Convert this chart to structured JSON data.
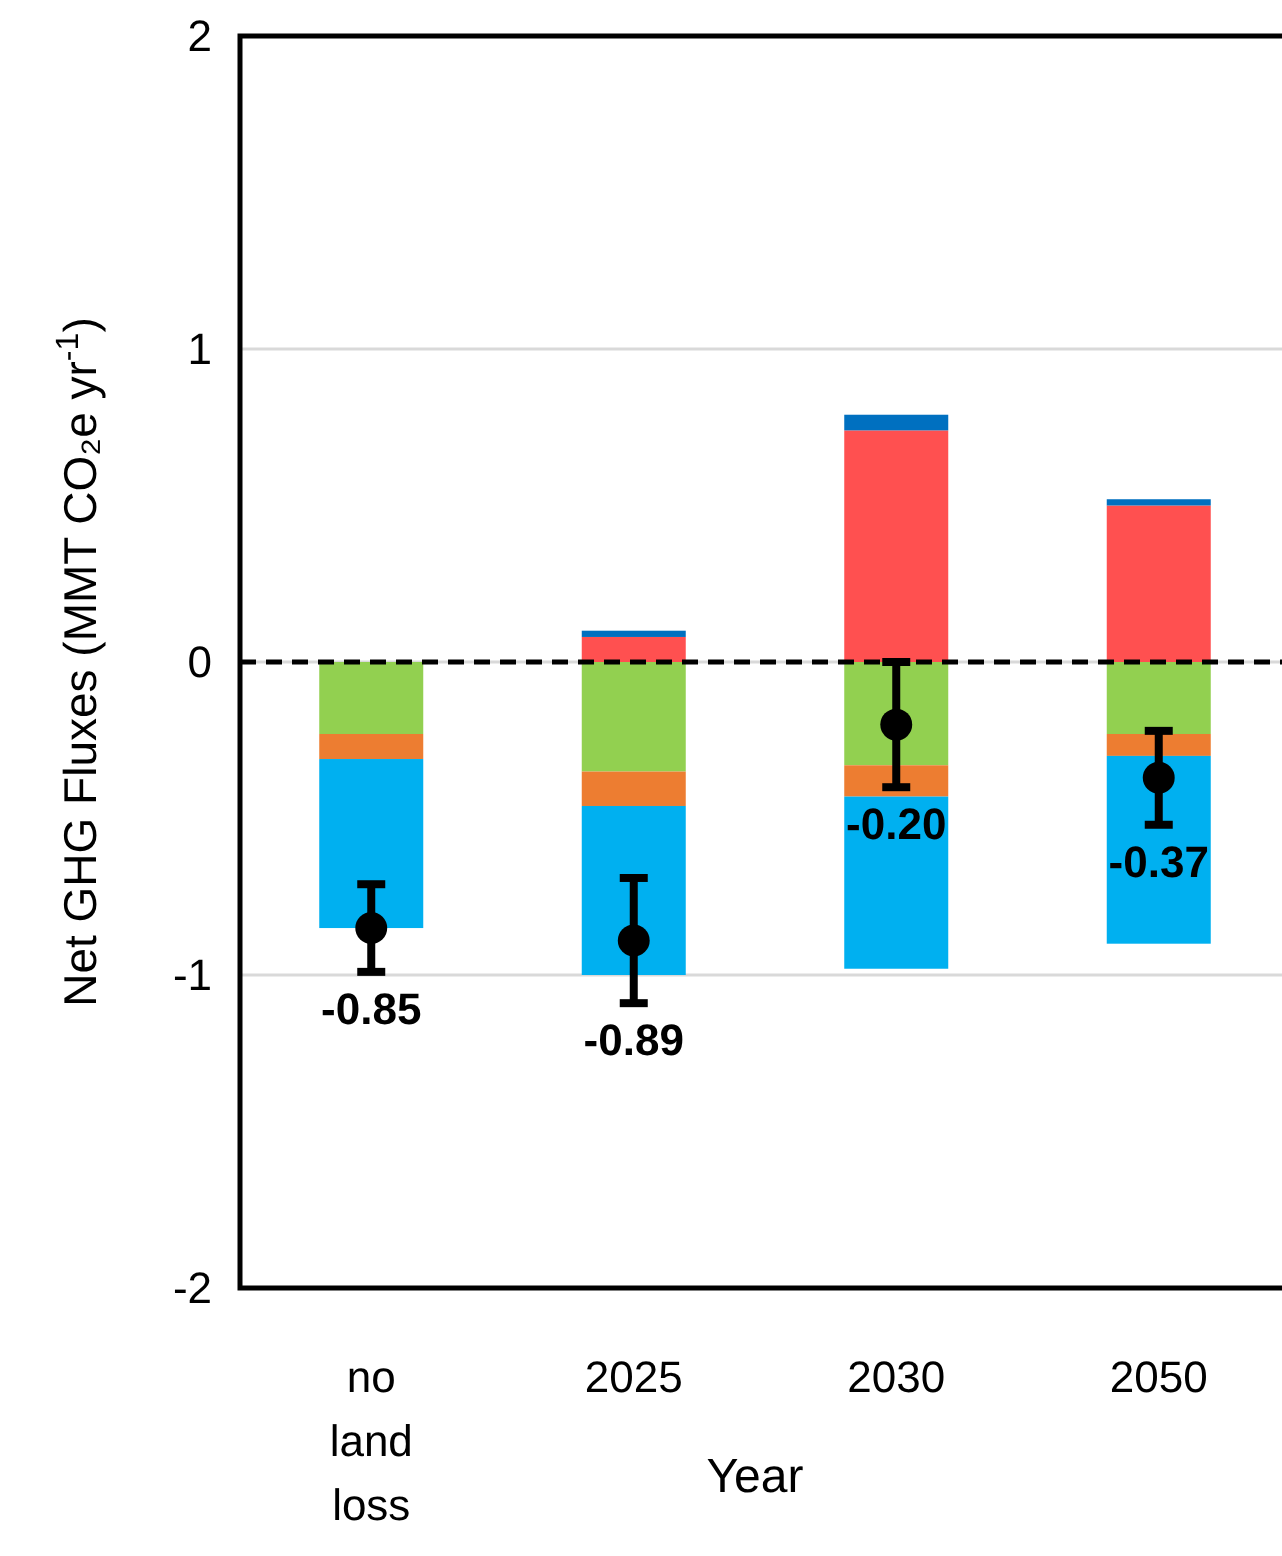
{
  "chart_data": {
    "type": "bar",
    "stacked": true,
    "ylabel": "Net GHG Fluxes (MMT CO₂e yr$^{-1}$)",
    "xlabel": "Year",
    "categories": [
      "no land loss",
      "2025",
      "2030",
      "2050"
    ],
    "series": [
      {
        "color": "#ff5050",
        "values": [
          null,
          0.08,
          0.74,
          0.5
        ]
      },
      {
        "color": "#0070c0",
        "values": [
          null,
          0.02,
          0.05,
          0.02
        ]
      },
      {
        "color": "#92d050",
        "values": [
          -0.23,
          -0.35,
          -0.33,
          -0.23
        ]
      },
      {
        "color": "#ed7d31",
        "values": [
          -0.08,
          -0.11,
          -0.1,
          -0.07
        ]
      },
      {
        "color": "#00b0f0",
        "values": [
          -0.54,
          -0.54,
          -0.55,
          -0.6
        ]
      },
      {
        "type": "scatter",
        "color": "#000000",
        "values": [
          -0.85,
          -0.89,
          -0.2,
          -0.37
        ],
        "errors": [
          0.14,
          0.2,
          0.2,
          0.15
        ],
        "value_labels": [
          "-0.85",
          "-0.89",
          "-0.20",
          "-0.37"
        ]
      }
    ],
    "ylim": [
      -2,
      2
    ],
    "yticks": [
      -2,
      -1,
      0,
      1,
      2
    ],
    "grid": "y",
    "marker": "circle",
    "ref_lines": [
      {
        "axis": "y",
        "value": 0,
        "color": "#000000",
        "line_style": "dashed"
      }
    ]
  }
}
